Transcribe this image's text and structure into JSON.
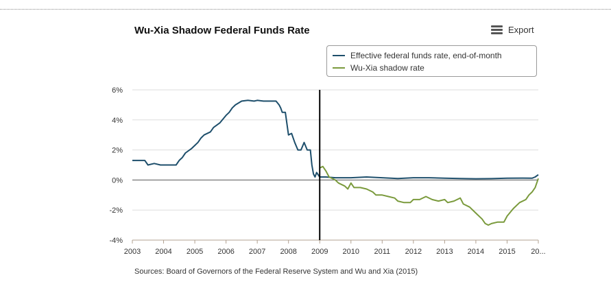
{
  "header": {
    "title": "Wu-Xia Shadow Federal Funds Rate",
    "export_label": "Export"
  },
  "footer": {
    "source": "Sources: Board of Governors of the Federal Reserve System and Wu and Xia (2015)"
  },
  "colors": {
    "effective": "#1d4e6b",
    "shadow": "#7a9a3c",
    "grid": "#dddddd",
    "zero_line": "#555555",
    "marker": "#000000"
  },
  "chart_data": {
    "type": "line",
    "title": "Wu-Xia Shadow Federal Funds Rate",
    "xlabel": "",
    "ylabel": "",
    "xlim": [
      2003.0,
      2016.0
    ],
    "ylim": [
      -4,
      6
    ],
    "x_ticks": [
      "2003",
      "2004",
      "2005",
      "2006",
      "2007",
      "2008",
      "2009",
      "2010",
      "2011",
      "2012",
      "2013",
      "2014",
      "2015",
      "20..."
    ],
    "y_ticks": [
      "6%",
      "4%",
      "2%",
      "0%",
      "-2%",
      "-4%"
    ],
    "y_tick_values": [
      6,
      4,
      2,
      0,
      -2,
      -4
    ],
    "grid": true,
    "legend_position": "top-right",
    "vertical_marker_x": 2009.0,
    "series": [
      {
        "name": "Effective federal funds rate, end-of-month",
        "color": "#1d4e6b",
        "points": [
          [
            2003.0,
            1.3
          ],
          [
            2003.2,
            1.3
          ],
          [
            2003.4,
            1.3
          ],
          [
            2003.5,
            1.0
          ],
          [
            2003.7,
            1.1
          ],
          [
            2003.9,
            1.0
          ],
          [
            2004.0,
            1.0
          ],
          [
            2004.2,
            1.0
          ],
          [
            2004.4,
            1.0
          ],
          [
            2004.5,
            1.3
          ],
          [
            2004.6,
            1.5
          ],
          [
            2004.7,
            1.8
          ],
          [
            2004.9,
            2.1
          ],
          [
            2005.0,
            2.3
          ],
          [
            2005.1,
            2.5
          ],
          [
            2005.2,
            2.8
          ],
          [
            2005.3,
            3.0
          ],
          [
            2005.5,
            3.2
          ],
          [
            2005.6,
            3.5
          ],
          [
            2005.8,
            3.8
          ],
          [
            2006.0,
            4.3
          ],
          [
            2006.1,
            4.5
          ],
          [
            2006.2,
            4.8
          ],
          [
            2006.3,
            5.0
          ],
          [
            2006.5,
            5.25
          ],
          [
            2006.7,
            5.3
          ],
          [
            2006.9,
            5.25
          ],
          [
            2007.0,
            5.3
          ],
          [
            2007.2,
            5.25
          ],
          [
            2007.4,
            5.25
          ],
          [
            2007.6,
            5.25
          ],
          [
            2007.7,
            5.0
          ],
          [
            2007.75,
            4.8
          ],
          [
            2007.8,
            4.5
          ],
          [
            2007.9,
            4.5
          ],
          [
            2008.0,
            3.0
          ],
          [
            2008.1,
            3.1
          ],
          [
            2008.2,
            2.5
          ],
          [
            2008.3,
            2.0
          ],
          [
            2008.4,
            2.0
          ],
          [
            2008.5,
            2.5
          ],
          [
            2008.6,
            2.0
          ],
          [
            2008.7,
            2.0
          ],
          [
            2008.75,
            1.0
          ],
          [
            2008.8,
            0.4
          ],
          [
            2008.85,
            0.2
          ],
          [
            2008.9,
            0.5
          ],
          [
            2009.0,
            0.2
          ],
          [
            2009.2,
            0.2
          ],
          [
            2009.5,
            0.15
          ],
          [
            2010.0,
            0.15
          ],
          [
            2010.5,
            0.2
          ],
          [
            2011.0,
            0.15
          ],
          [
            2011.5,
            0.1
          ],
          [
            2012.0,
            0.15
          ],
          [
            2012.5,
            0.15
          ],
          [
            2013.0,
            0.12
          ],
          [
            2013.5,
            0.1
          ],
          [
            2014.0,
            0.08
          ],
          [
            2014.5,
            0.09
          ],
          [
            2015.0,
            0.12
          ],
          [
            2015.5,
            0.13
          ],
          [
            2015.8,
            0.12
          ],
          [
            2015.9,
            0.2
          ],
          [
            2016.0,
            0.35
          ]
        ]
      },
      {
        "name": "Wu-Xia shadow rate",
        "color": "#7a9a3c",
        "points": [
          [
            2009.0,
            0.8
          ],
          [
            2009.1,
            0.9
          ],
          [
            2009.2,
            0.6
          ],
          [
            2009.3,
            0.2
          ],
          [
            2009.5,
            0.0
          ],
          [
            2009.6,
            -0.2
          ],
          [
            2009.8,
            -0.4
          ],
          [
            2009.9,
            -0.6
          ],
          [
            2010.0,
            -0.2
          ],
          [
            2010.1,
            -0.5
          ],
          [
            2010.3,
            -0.5
          ],
          [
            2010.5,
            -0.6
          ],
          [
            2010.7,
            -0.8
          ],
          [
            2010.8,
            -1.0
          ],
          [
            2011.0,
            -1.0
          ],
          [
            2011.2,
            -1.1
          ],
          [
            2011.4,
            -1.2
          ],
          [
            2011.5,
            -1.4
          ],
          [
            2011.7,
            -1.5
          ],
          [
            2011.9,
            -1.5
          ],
          [
            2012.0,
            -1.3
          ],
          [
            2012.2,
            -1.3
          ],
          [
            2012.4,
            -1.1
          ],
          [
            2012.6,
            -1.3
          ],
          [
            2012.8,
            -1.4
          ],
          [
            2013.0,
            -1.3
          ],
          [
            2013.1,
            -1.5
          ],
          [
            2013.3,
            -1.4
          ],
          [
            2013.4,
            -1.3
          ],
          [
            2013.5,
            -1.2
          ],
          [
            2013.6,
            -1.6
          ],
          [
            2013.8,
            -1.8
          ],
          [
            2014.0,
            -2.2
          ],
          [
            2014.2,
            -2.6
          ],
          [
            2014.3,
            -2.9
          ],
          [
            2014.4,
            -3.0
          ],
          [
            2014.5,
            -2.9
          ],
          [
            2014.7,
            -2.8
          ],
          [
            2014.9,
            -2.8
          ],
          [
            2015.0,
            -2.4
          ],
          [
            2015.2,
            -1.9
          ],
          [
            2015.4,
            -1.5
          ],
          [
            2015.6,
            -1.3
          ],
          [
            2015.7,
            -1.0
          ],
          [
            2015.8,
            -0.8
          ],
          [
            2015.9,
            -0.5
          ],
          [
            2016.0,
            0.1
          ]
        ]
      }
    ]
  }
}
